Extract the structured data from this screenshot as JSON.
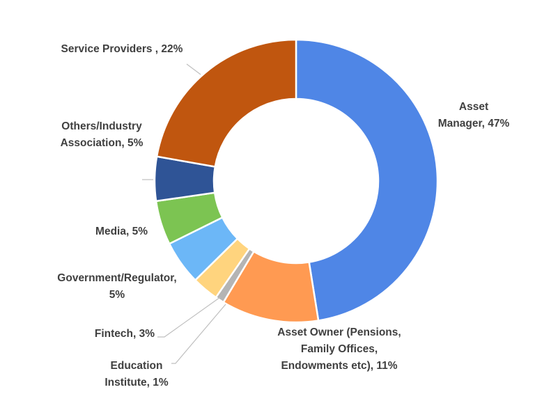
{
  "chart_data": {
    "type": "pie",
    "donut": true,
    "slices": [
      {
        "name": "Asset Manager",
        "value": 47,
        "color": "#4f86e6",
        "label_lines": [
          "Asset",
          "Manager, 47%"
        ]
      },
      {
        "name": "Asset Owner (Pensions, Family Offices, Endowments etc)",
        "value": 11,
        "color": "#ff9a52",
        "label_lines": [
          "Asset Owner (Pensions,",
          "Family Offices,",
          "Endowments etc), 11%"
        ]
      },
      {
        "name": "Education Institute",
        "value": 1,
        "color": "#b4b4b4",
        "label_lines": [
          "Education",
          "Institute, 1%"
        ]
      },
      {
        "name": "Fintech",
        "value": 3,
        "color": "#ffd47e",
        "label_lines": [
          "Fintech, 3%"
        ]
      },
      {
        "name": "Government/Regulator",
        "value": 5,
        "color": "#6cb7f7",
        "label_lines": [
          "Government/Regulator,",
          "5%"
        ]
      },
      {
        "name": "Media",
        "value": 5,
        "color": "#7cc452",
        "label_lines": [
          "Media, 5%"
        ]
      },
      {
        "name": "Others/Industry Association",
        "value": 5,
        "color": "#2f5496",
        "label_lines": [
          "Others/Industry",
          "Association, 5%"
        ]
      },
      {
        "name": "Service Providers",
        "value": 22,
        "color": "#c0560f",
        "label_lines": [
          "Service Providers , 22%"
        ]
      }
    ],
    "legend": "none"
  }
}
